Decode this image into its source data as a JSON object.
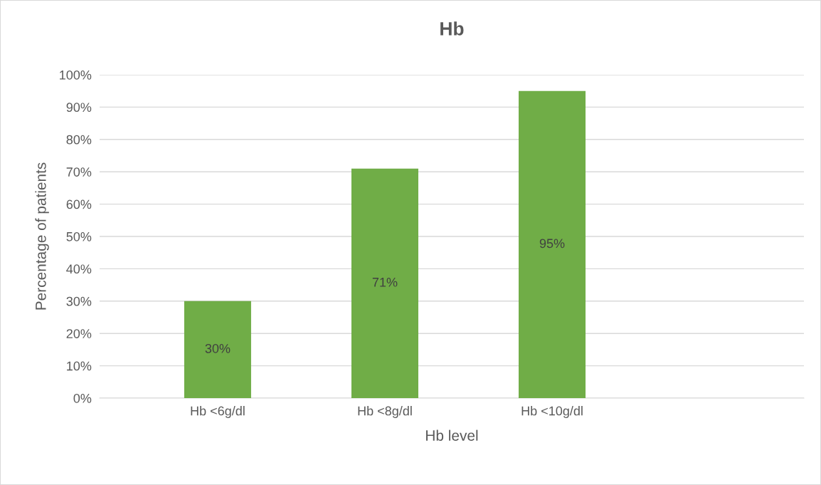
{
  "chart_data": {
    "type": "bar",
    "title": "Hb",
    "xlabel": "Hb level",
    "ylabel": "Percentage of patients",
    "categories": [
      "Hb <6g/dl",
      "Hb <8g/dl",
      "Hb <10g/dl",
      null
    ],
    "values": [
      30,
      71,
      95,
      null
    ],
    "color": "#70ad47",
    "value_labels": [
      "30%",
      "71%",
      "95%",
      null
    ],
    "ylim": [
      0,
      100
    ],
    "yticks": [
      {
        "value": 0,
        "label": "0%"
      },
      {
        "value": 10,
        "label": "10%"
      },
      {
        "value": 20,
        "label": "20%"
      },
      {
        "value": 30,
        "label": "30%"
      },
      {
        "value": 40,
        "label": "40%"
      },
      {
        "value": 50,
        "label": "50%"
      },
      {
        "value": 60,
        "label": "60%"
      },
      {
        "value": 70,
        "label": "70%"
      },
      {
        "value": 80,
        "label": "80%"
      },
      {
        "value": 90,
        "label": "90%"
      },
      {
        "value": 100,
        "label": "100%"
      }
    ],
    "grid": "y",
    "legend": false
  }
}
